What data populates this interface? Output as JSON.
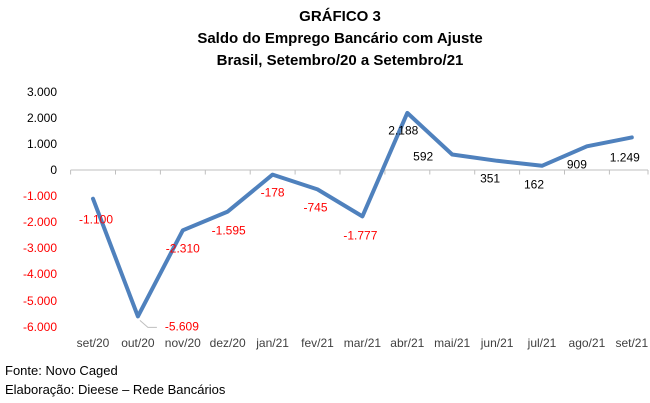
{
  "title": {
    "line1": "GRÁFICO 3",
    "line2": "Saldo do Emprego Bancário com Ajuste",
    "line3": "Brasil, Setembro/20 a Setembro/21"
  },
  "footer": {
    "line1": "Fonte: Novo Caged",
    "line2": "Elaboração: Dieese – Rede Bancários"
  },
  "chart_data": {
    "type": "line",
    "title": "GRÁFICO 3 — Saldo do Emprego Bancário com Ajuste — Brasil, Setembro/20 a Setembro/21",
    "title_lines": [
      "GRÁFICO 3",
      "Saldo do Emprego Bancário com Ajuste",
      "Brasil, Setembro/20 a Setembro/21"
    ],
    "categories": [
      "set/20",
      "out/20",
      "nov/20",
      "dez/20",
      "jan/21",
      "fev/21",
      "mar/21",
      "abr/21",
      "mai/21",
      "jun/21",
      "jul/21",
      "ago/21",
      "set/21"
    ],
    "values": [
      -1100,
      -5609,
      -2310,
      -1595,
      -178,
      -745,
      -1777,
      2188,
      592,
      351,
      162,
      909,
      1249
    ],
    "data_labels": [
      "-1.100",
      "-5.609",
      "-2.310",
      "-1.595",
      "-178",
      "-745",
      "-1.777",
      "2.188",
      "592",
      "351",
      "162",
      "909",
      "1.249"
    ],
    "y_axis": {
      "min": -6000,
      "max": 3000,
      "ticks": [
        {
          "v": 3000,
          "label": "3.000"
        },
        {
          "v": 2000,
          "label": "2.000"
        },
        {
          "v": 1000,
          "label": "1.000"
        },
        {
          "v": 0,
          "label": "0"
        },
        {
          "v": -1000,
          "label": "-1.000"
        },
        {
          "v": -2000,
          "label": "-2.000"
        },
        {
          "v": -3000,
          "label": "-3.000"
        },
        {
          "v": -4000,
          "label": "-4.000"
        },
        {
          "v": -5000,
          "label": "-5.000"
        },
        {
          "v": -6000,
          "label": "-6.000"
        }
      ]
    },
    "grid": false,
    "legend": false,
    "colors": {
      "line": "#4F81BD",
      "negative_label": "#FF0000",
      "positive_label": "#000000",
      "axis": "#BFBFBF",
      "x_label": "#404040",
      "background": "#FFFFFF"
    }
  }
}
